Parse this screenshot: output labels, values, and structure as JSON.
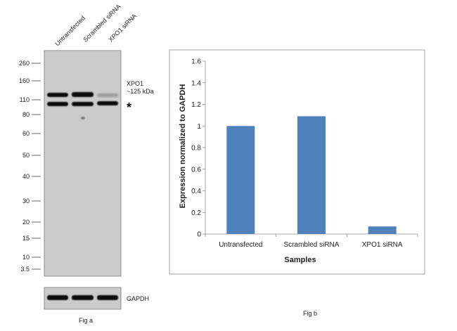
{
  "blot": {
    "lane_labels": [
      "Untransfected",
      "Scrambled siRNA",
      "XPO1 siRNA"
    ],
    "markers": [
      "260",
      "160",
      "110",
      "80",
      "60",
      "50",
      "40",
      "30",
      "20",
      "15",
      "10",
      "3.5"
    ],
    "target_label": "XPO1",
    "target_size": "~125 kDa",
    "nonspecific_mark": "*",
    "loading_control": "GAPDH",
    "caption": "Fig a"
  },
  "chart_data": {
    "type": "bar",
    "categories": [
      "Untransfected",
      "Scrambled siRNA",
      "XPO1 siRNA"
    ],
    "values": [
      1.0,
      1.09,
      0.07
    ],
    "xlabel": "Samples",
    "ylabel": "Expression normalized to GAPDH",
    "ylim": [
      0,
      1.6
    ],
    "yticks": [
      "0",
      "0.2",
      "0.4",
      "0.6",
      "0.8",
      "1",
      "1.2",
      "1.4",
      "1.6"
    ],
    "bar_color": "#4f81bd",
    "grid": false,
    "legend": "none",
    "caption": "Fig b"
  }
}
